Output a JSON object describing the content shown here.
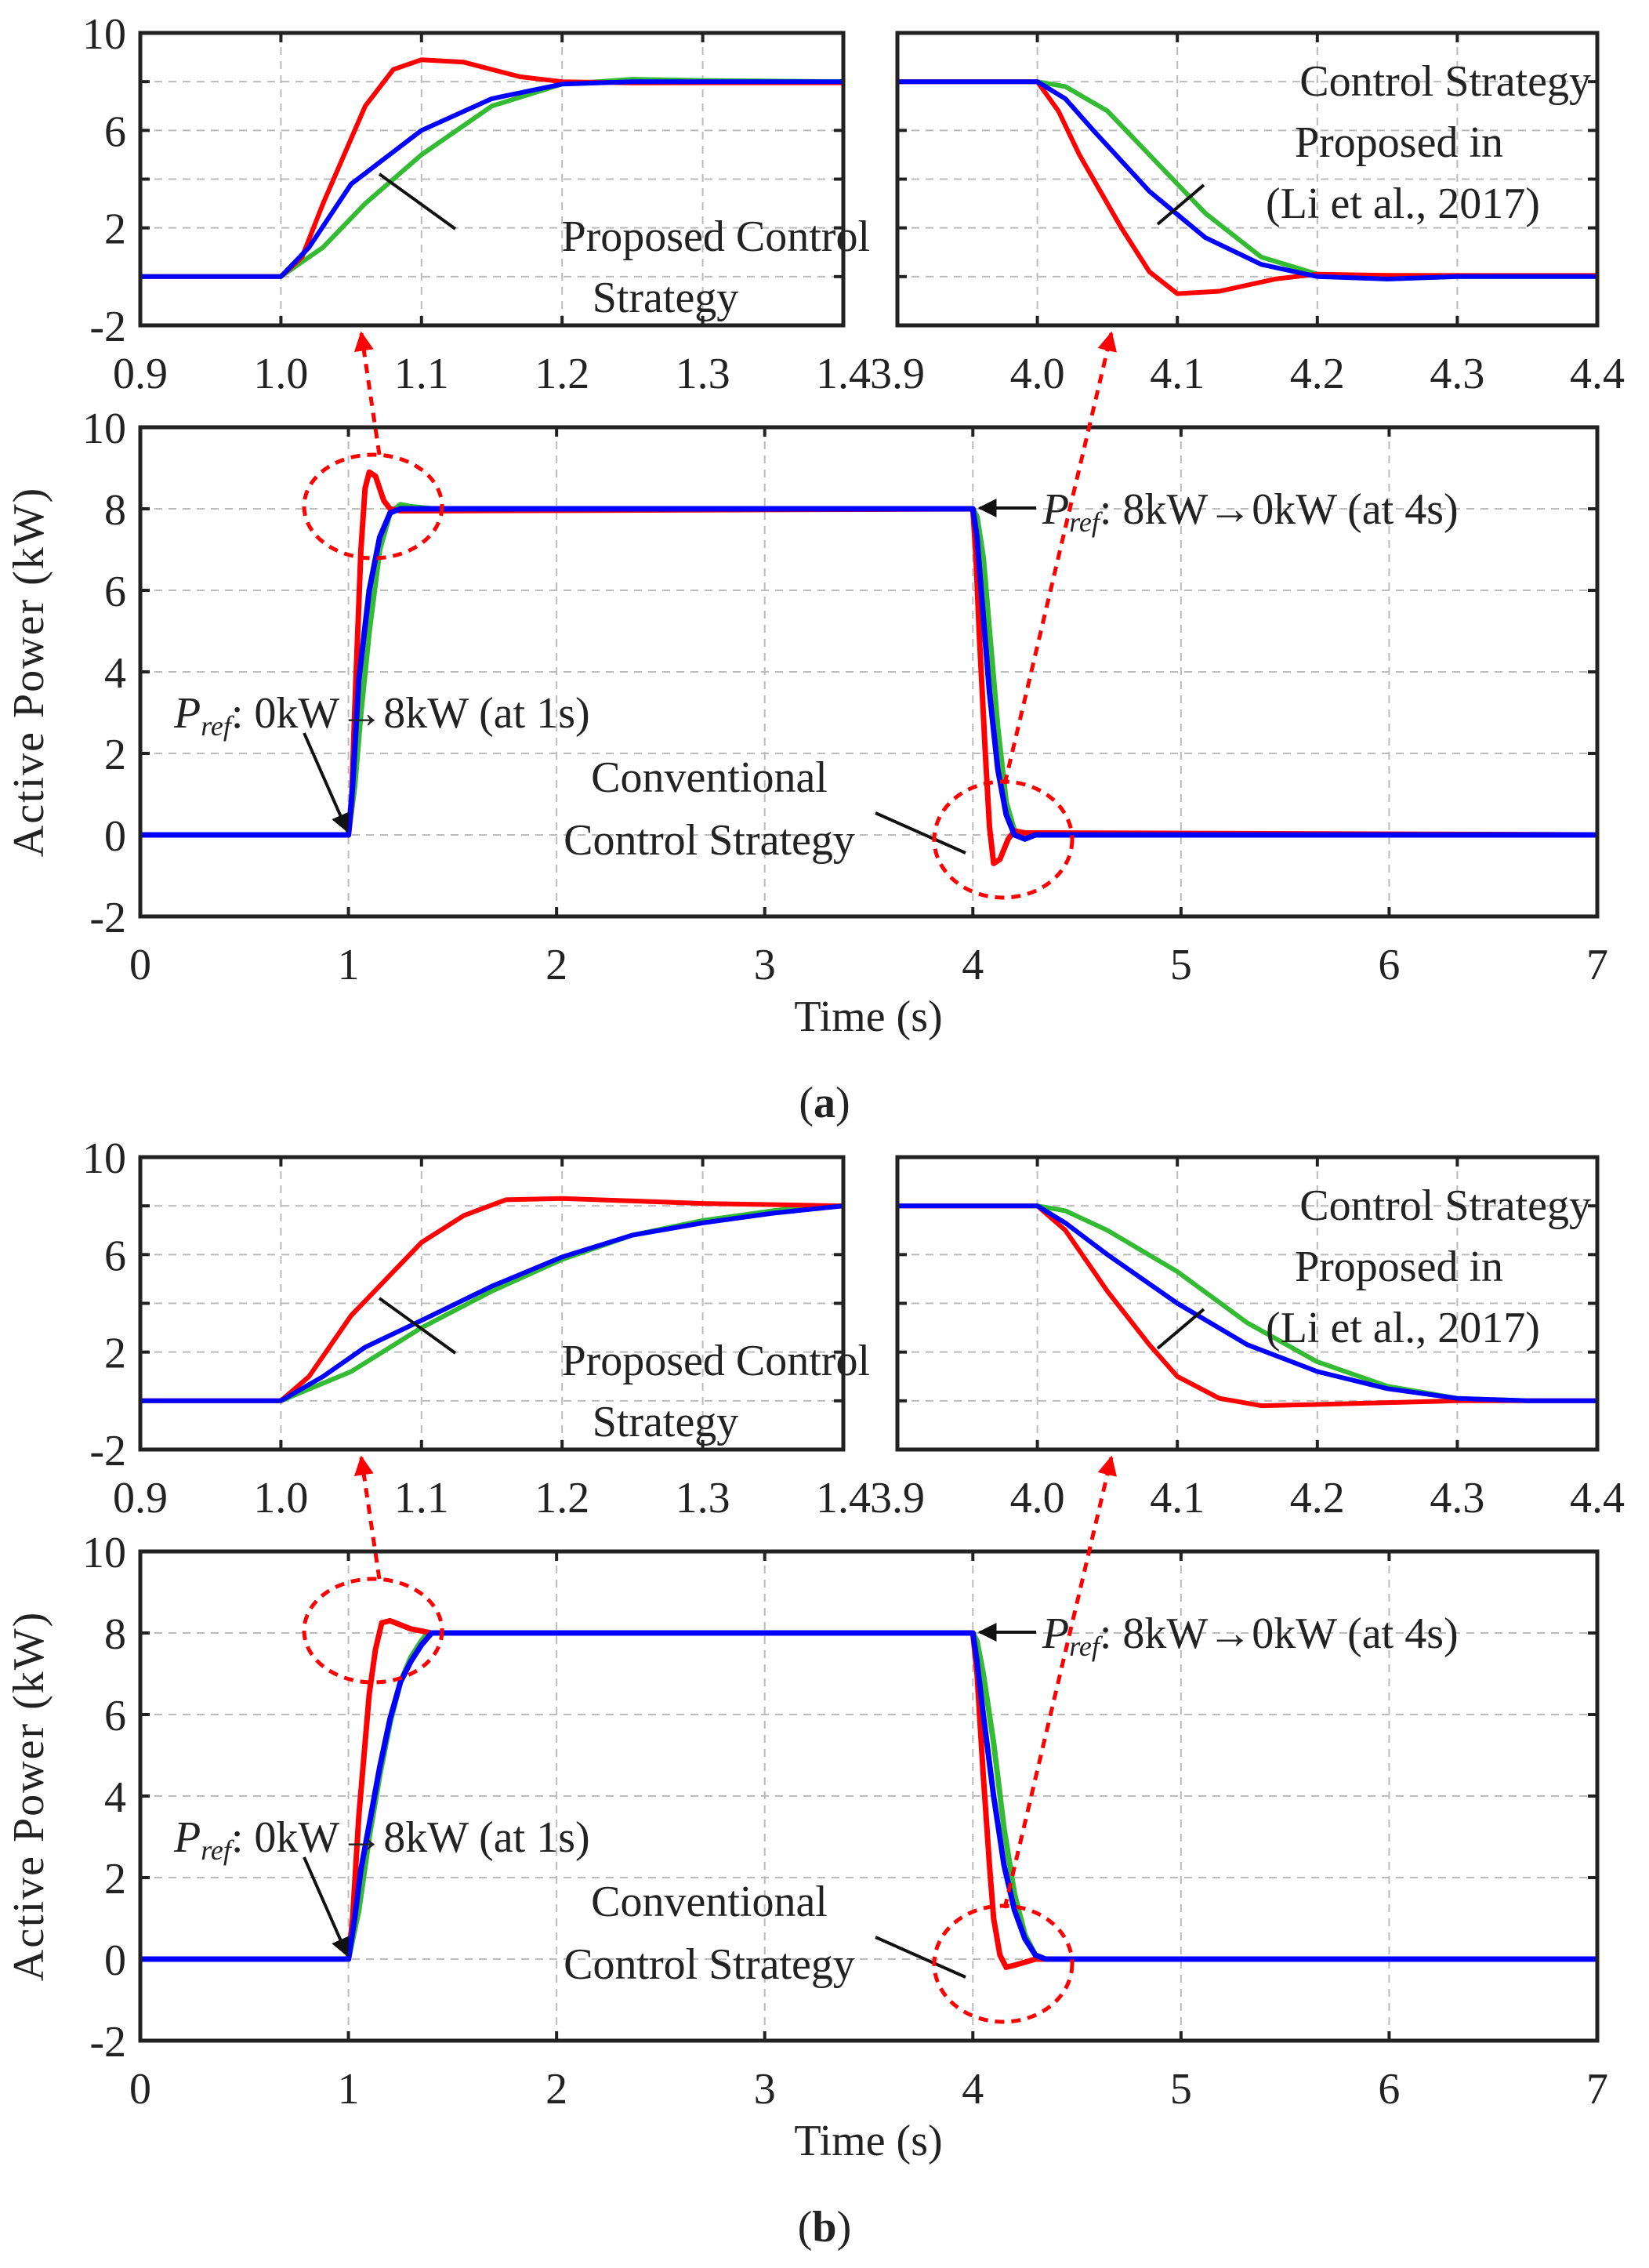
{
  "colors": {
    "conventional": "#ff0000",
    "li2017": "#33bb33",
    "proposed": "#0000ff",
    "annotation": "#ff0000"
  },
  "chart_data": [
    {
      "type": "line",
      "caption": "(a)",
      "caption_letter": "a",
      "xlabel": "Time (s)",
      "ylabel": "Active Power (kW)",
      "xlim": [
        0,
        7
      ],
      "ylim": [
        -2,
        10
      ],
      "xticks": [
        "0",
        "1",
        "2",
        "3",
        "4",
        "5",
        "6",
        "7"
      ],
      "yticks": [
        "-2",
        "0",
        "2",
        "4",
        "6",
        "8",
        "10"
      ],
      "inset_left": {
        "xlim": [
          0.9,
          1.4
        ],
        "ylim": [
          -2,
          10
        ],
        "xticks": [
          "0.9",
          "1.0",
          "1.1",
          "1.2",
          "1.3",
          "1.4"
        ],
        "yticks": [
          "-2",
          "2",
          "6",
          "10"
        ]
      },
      "inset_right": {
        "xlim": [
          3.9,
          4.4
        ],
        "ylim": [
          -2,
          10
        ],
        "xticks": [
          "3.9",
          "4.0",
          "4.1",
          "4.2",
          "4.3",
          "4.4"
        ]
      },
      "grid": true,
      "annotations": {
        "proposed_1": "Proposed Control",
        "proposed_2": "Strategy",
        "li_1": "Control Strategy",
        "li_2": "Proposed in",
        "li_3": "(Li et al., 2017)",
        "conv_1": "Conventional",
        "conv_2": "Control Strategy",
        "pref_sym": "P",
        "pref_sub": "ref",
        "step_up": ": 0kW→8kW (at 1s)",
        "step_down": ": 8kW→0kW (at 4s)"
      },
      "series": [
        {
          "name": "Conventional Control Strategy",
          "color_key": "conventional",
          "points": [
            [
              0,
              0
            ],
            [
              1.0,
              0
            ],
            [
              1.015,
              0.8
            ],
            [
              1.03,
              3
            ],
            [
              1.06,
              7
            ],
            [
              1.08,
              8.5
            ],
            [
              1.1,
              8.9
            ],
            [
              1.13,
              8.8
            ],
            [
              1.17,
              8.2
            ],
            [
              1.2,
              8.0
            ],
            [
              1.25,
              7.95
            ],
            [
              4.0,
              8
            ],
            [
              4.015,
              6.8
            ],
            [
              4.03,
              5
            ],
            [
              4.06,
              2
            ],
            [
              4.08,
              0.2
            ],
            [
              4.1,
              -0.7
            ],
            [
              4.13,
              -0.6
            ],
            [
              4.17,
              -0.1
            ],
            [
              4.2,
              0.1
            ],
            [
              4.25,
              0.05
            ],
            [
              7,
              0
            ]
          ]
        },
        {
          "name": "Control Strategy Proposed in (Li et al., 2017)",
          "color_key": "li2017",
          "points": [
            [
              0,
              0
            ],
            [
              1.0,
              0
            ],
            [
              1.03,
              1.2
            ],
            [
              1.06,
              3
            ],
            [
              1.1,
              5
            ],
            [
              1.15,
              7
            ],
            [
              1.2,
              7.9
            ],
            [
              1.25,
              8.1
            ],
            [
              1.3,
              8.05
            ],
            [
              1.4,
              8
            ],
            [
              4.0,
              8
            ],
            [
              4.02,
              7.8
            ],
            [
              4.05,
              6.8
            ],
            [
              4.08,
              5
            ],
            [
              4.12,
              2.6
            ],
            [
              4.16,
              0.8
            ],
            [
              4.2,
              0.1
            ],
            [
              4.25,
              -0.1
            ],
            [
              4.3,
              0
            ],
            [
              7,
              0
            ]
          ]
        },
        {
          "name": "Proposed Control Strategy",
          "color_key": "proposed",
          "points": [
            [
              0,
              0
            ],
            [
              1.0,
              0
            ],
            [
              1.02,
              1.2
            ],
            [
              1.05,
              3.8
            ],
            [
              1.1,
              6
            ],
            [
              1.15,
              7.3
            ],
            [
              1.2,
              7.9
            ],
            [
              1.25,
              8
            ],
            [
              4.0,
              8
            ],
            [
              4.02,
              7.3
            ],
            [
              4.04,
              6
            ],
            [
              4.08,
              3.5
            ],
            [
              4.12,
              1.6
            ],
            [
              4.16,
              0.5
            ],
            [
              4.2,
              0
            ],
            [
              4.25,
              -0.1
            ],
            [
              4.3,
              0
            ],
            [
              7,
              0
            ]
          ]
        }
      ]
    },
    {
      "type": "line",
      "caption": "(b)",
      "caption_letter": "b",
      "xlabel": "Time (s)",
      "ylabel": "Active Power (kW)",
      "xlim": [
        0,
        7
      ],
      "ylim": [
        -2,
        10
      ],
      "xticks": [
        "0",
        "1",
        "2",
        "3",
        "4",
        "5",
        "6",
        "7"
      ],
      "yticks": [
        "-2",
        "0",
        "2",
        "4",
        "6",
        "8",
        "10"
      ],
      "inset_left": {
        "xlim": [
          0.9,
          1.4
        ],
        "ylim": [
          -2,
          10
        ],
        "xticks": [
          "0.9",
          "1.0",
          "1.1",
          "1.2",
          "1.3",
          "1.4"
        ],
        "yticks": [
          "-2",
          "2",
          "6",
          "10"
        ]
      },
      "inset_right": {
        "xlim": [
          3.9,
          4.4
        ],
        "ylim": [
          -2,
          10
        ],
        "xticks": [
          "3.9",
          "4.0",
          "4.1",
          "4.2",
          "4.3",
          "4.4"
        ]
      },
      "grid": true,
      "annotations": {
        "proposed_1": "Proposed Control",
        "proposed_2": "Strategy",
        "li_1": "Control Strategy",
        "li_2": "Proposed in",
        "li_3": "(Li et al., 2017)",
        "conv_1": "Conventional",
        "conv_2": "Control Strategy",
        "pref_sym": "P",
        "pref_sub": "ref",
        "step_up": ": 0kW→8kW (at 1s)",
        "step_down": ": 8kW→0kW (at 4s)"
      },
      "series": [
        {
          "name": "Conventional Control Strategy",
          "color_key": "conventional",
          "points": [
            [
              0,
              0
            ],
            [
              1.0,
              0
            ],
            [
              1.02,
              1
            ],
            [
              1.05,
              3.5
            ],
            [
              1.08,
              5.3
            ],
            [
              1.1,
              6.5
            ],
            [
              1.13,
              7.6
            ],
            [
              1.16,
              8.25
            ],
            [
              1.2,
              8.3
            ],
            [
              1.25,
              8.2
            ],
            [
              1.3,
              8.1
            ],
            [
              1.4,
              8
            ],
            [
              4.0,
              8
            ],
            [
              4.02,
              7
            ],
            [
              4.05,
              4.5
            ],
            [
              4.08,
              2.3
            ],
            [
              4.1,
              1
            ],
            [
              4.13,
              0.1
            ],
            [
              4.16,
              -0.2
            ],
            [
              4.2,
              -0.15
            ],
            [
              4.3,
              0
            ],
            [
              7,
              0
            ]
          ]
        },
        {
          "name": "Control Strategy Proposed in (Li et al., 2017)",
          "color_key": "li2017",
          "points": [
            [
              0,
              0
            ],
            [
              1.0,
              0
            ],
            [
              1.05,
              1.2
            ],
            [
              1.1,
              3
            ],
            [
              1.15,
              4.5
            ],
            [
              1.2,
              5.8
            ],
            [
              1.25,
              6.8
            ],
            [
              1.3,
              7.4
            ],
            [
              1.35,
              7.8
            ],
            [
              1.38,
              8
            ],
            [
              4.0,
              8
            ],
            [
              4.02,
              7.8
            ],
            [
              4.05,
              7
            ],
            [
              4.1,
              5.3
            ],
            [
              4.15,
              3.2
            ],
            [
              4.2,
              1.6
            ],
            [
              4.25,
              0.6
            ],
            [
              4.3,
              0.1
            ],
            [
              4.35,
              0
            ],
            [
              7,
              0
            ]
          ]
        },
        {
          "name": "Proposed Control Strategy",
          "color_key": "proposed",
          "points": [
            [
              0,
              0
            ],
            [
              1.0,
              0
            ],
            [
              1.03,
              1
            ],
            [
              1.06,
              2.2
            ],
            [
              1.1,
              3.3
            ],
            [
              1.15,
              4.7
            ],
            [
              1.2,
              5.9
            ],
            [
              1.25,
              6.8
            ],
            [
              1.3,
              7.3
            ],
            [
              1.35,
              7.7
            ],
            [
              1.4,
              8
            ],
            [
              4.0,
              8
            ],
            [
              4.02,
              7.3
            ],
            [
              4.05,
              6
            ],
            [
              4.1,
              4
            ],
            [
              4.15,
              2.3
            ],
            [
              4.2,
              1.2
            ],
            [
              4.25,
              0.5
            ],
            [
              4.3,
              0.1
            ],
            [
              4.35,
              0
            ],
            [
              7,
              0
            ]
          ]
        }
      ]
    }
  ]
}
